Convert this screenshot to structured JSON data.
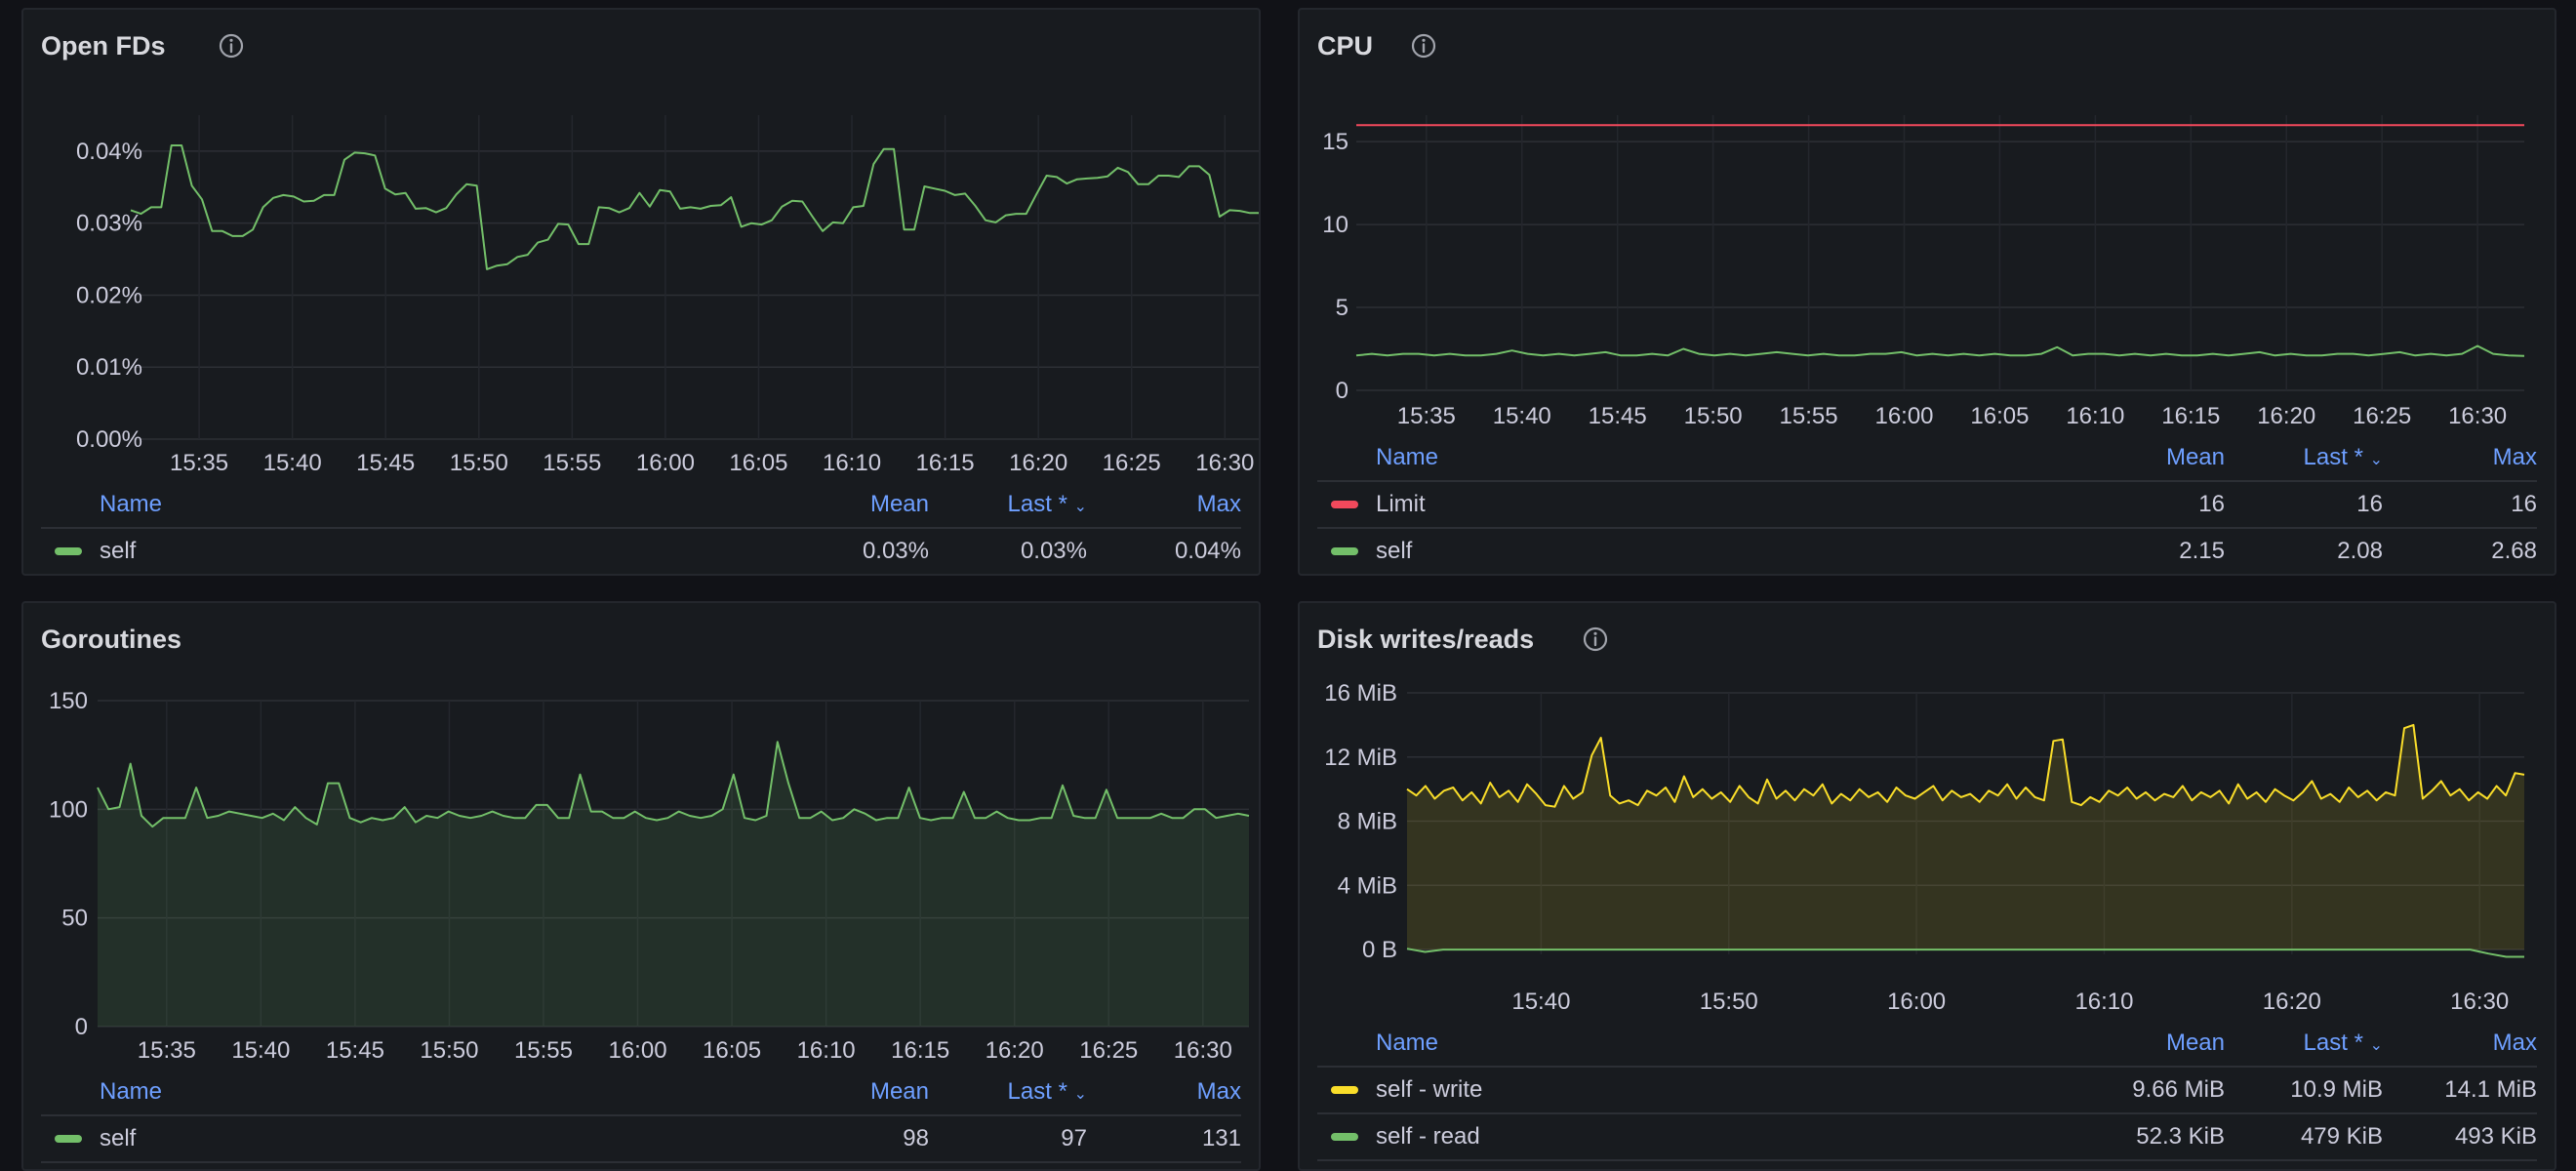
{
  "legend_headers": {
    "name": "Name",
    "mean": "Mean",
    "last": "Last *",
    "max": "Max"
  },
  "icons": {
    "info": "info-circle-icon",
    "sort": "chevron-down-icon"
  },
  "colors": {
    "green": "#73bf69",
    "red": "#f2495c",
    "yellow": "#fade2a",
    "header": "#6e9fff"
  },
  "panels": [
    {
      "id": "open-fds",
      "title": "Open FDs",
      "has_info": true,
      "chart_data": {
        "type": "line",
        "y_ticks": [
          "0.00%",
          "0.01%",
          "0.02%",
          "0.03%",
          "0.04%"
        ],
        "y_tick_values": [
          0,
          0.01,
          0.02,
          0.03,
          0.04
        ],
        "ylim": [
          0,
          0.045
        ],
        "x_ticks": [
          "15:35",
          "15:40",
          "15:45",
          "15:50",
          "15:55",
          "16:00",
          "16:05",
          "16:10",
          "16:15",
          "16:20",
          "16:25",
          "16:30"
        ],
        "series": [
          {
            "name": "self",
            "color": "#73bf69",
            "fill": false,
            "values": [
              0.0318,
              0.0313,
              0.0322,
              0.0322,
              0.0408,
              0.0408,
              0.0352,
              0.0333,
              0.0289,
              0.0289,
              0.0282,
              0.0282,
              0.0291,
              0.0322,
              0.0335,
              0.0339,
              0.0337,
              0.033,
              0.0331,
              0.0339,
              0.0339,
              0.0388,
              0.0398,
              0.0397,
              0.0394,
              0.0348,
              0.034,
              0.0342,
              0.032,
              0.0321,
              0.0315,
              0.0321,
              0.034,
              0.0354,
              0.0352,
              0.0236,
              0.0241,
              0.0243,
              0.0253,
              0.0256,
              0.0273,
              0.0277,
              0.0299,
              0.0298,
              0.0271,
              0.0271,
              0.0322,
              0.0321,
              0.0315,
              0.0321,
              0.0342,
              0.0323,
              0.0346,
              0.0344,
              0.032,
              0.0322,
              0.032,
              0.0324,
              0.0325,
              0.0336,
              0.0295,
              0.03,
              0.0298,
              0.0304,
              0.0323,
              0.0331,
              0.033,
              0.0309,
              0.0289,
              0.0301,
              0.03,
              0.0322,
              0.0324,
              0.0382,
              0.0403,
              0.0403,
              0.0291,
              0.0291,
              0.0351,
              0.0348,
              0.0345,
              0.0339,
              0.0341,
              0.0324,
              0.0304,
              0.0301,
              0.0311,
              0.0313,
              0.0313,
              0.034,
              0.0366,
              0.0364,
              0.0355,
              0.0361,
              0.0362,
              0.0363,
              0.0365,
              0.0377,
              0.0371,
              0.0354,
              0.0354,
              0.0366,
              0.0366,
              0.0364,
              0.0379,
              0.0379,
              0.0367,
              0.0309,
              0.0318,
              0.0317,
              0.0314,
              0.0314,
              0.0314
            ]
          }
        ]
      },
      "legend": [
        {
          "name": "self",
          "color": "#73bf69",
          "mean": "0.03%",
          "last": "0.03%",
          "max": "0.04%"
        }
      ]
    },
    {
      "id": "cpu",
      "title": "CPU",
      "has_info": true,
      "chart_data": {
        "type": "line",
        "y_ticks": [
          "0",
          "5",
          "10",
          "15"
        ],
        "y_tick_values": [
          0,
          5,
          10,
          15
        ],
        "ylim": [
          0,
          16.6
        ],
        "x_ticks": [
          "15:35",
          "15:40",
          "15:45",
          "15:50",
          "15:55",
          "16:00",
          "16:05",
          "16:10",
          "16:15",
          "16:20",
          "16:25",
          "16:30"
        ],
        "series": [
          {
            "name": "Limit",
            "color": "#f2495c",
            "fill": false,
            "values": [
              16,
              16
            ]
          },
          {
            "name": "self",
            "color": "#73bf69",
            "fill": false,
            "values": [
              2.1,
              2.2,
              2.1,
              2.2,
              2.2,
              2.1,
              2.2,
              2.1,
              2.1,
              2.2,
              2.4,
              2.2,
              2.1,
              2.2,
              2.1,
              2.2,
              2.3,
              2.1,
              2.1,
              2.2,
              2.1,
              2.5,
              2.2,
              2.1,
              2.2,
              2.1,
              2.2,
              2.3,
              2.2,
              2.1,
              2.2,
              2.1,
              2.1,
              2.2,
              2.2,
              2.3,
              2.1,
              2.2,
              2.1,
              2.2,
              2.1,
              2.2,
              2.1,
              2.1,
              2.2,
              2.6,
              2.1,
              2.2,
              2.2,
              2.1,
              2.2,
              2.1,
              2.2,
              2.1,
              2.1,
              2.2,
              2.1,
              2.2,
              2.3,
              2.1,
              2.2,
              2.1,
              2.1,
              2.2,
              2.2,
              2.1,
              2.2,
              2.3,
              2.1,
              2.2,
              2.1,
              2.2,
              2.68,
              2.2,
              2.1,
              2.08
            ]
          }
        ]
      },
      "legend": [
        {
          "name": "Limit",
          "color": "#f2495c",
          "mean": "16",
          "last": "16",
          "max": "16"
        },
        {
          "name": "self",
          "color": "#73bf69",
          "mean": "2.15",
          "last": "2.08",
          "max": "2.68"
        }
      ]
    },
    {
      "id": "goroutines",
      "title": "Goroutines",
      "has_info": false,
      "chart_data": {
        "type": "area",
        "y_ticks": [
          "0",
          "50",
          "100",
          "150"
        ],
        "y_tick_values": [
          0,
          50,
          100,
          150
        ],
        "ylim": [
          0,
          150
        ],
        "x_ticks": [
          "15:35",
          "15:40",
          "15:45",
          "15:50",
          "15:55",
          "16:00",
          "16:05",
          "16:10",
          "16:15",
          "16:20",
          "16:25",
          "16:30"
        ],
        "series": [
          {
            "name": "self",
            "color": "#73bf69",
            "fill": true,
            "values": [
              110,
              100,
              101,
              121,
              97,
              92,
              96,
              96,
              96,
              110,
              96,
              97,
              99,
              98,
              97,
              96,
              98,
              95,
              101,
              96,
              93,
              112,
              112,
              96,
              94,
              96,
              95,
              96,
              101,
              94,
              97,
              96,
              99,
              97,
              96,
              97,
              99,
              97,
              96,
              96,
              102,
              102,
              96,
              96,
              116,
              99,
              99,
              96,
              96,
              99,
              96,
              95,
              96,
              99,
              97,
              96,
              97,
              100,
              116,
              96,
              95,
              97,
              131,
              112,
              96,
              96,
              99,
              95,
              96,
              100,
              98,
              95,
              96,
              96,
              110,
              96,
              95,
              96,
              96,
              108,
              96,
              96,
              99,
              96,
              95,
              95,
              96,
              96,
              111,
              97,
              96,
              96,
              109,
              96,
              96,
              96,
              96,
              98,
              96,
              96,
              100,
              100,
              96,
              97,
              98,
              97
            ]
          }
        ]
      },
      "legend": [
        {
          "name": "self",
          "color": "#73bf69",
          "mean": "98",
          "last": "97",
          "max": "131"
        }
      ]
    },
    {
      "id": "disk",
      "title": "Disk writes/reads",
      "has_info": true,
      "chart_data": {
        "type": "area",
        "y_ticks": [
          "0 B",
          "4 MiB",
          "8 MiB",
          "12 MiB",
          "16 MiB"
        ],
        "y_tick_values": [
          0,
          4,
          8,
          12,
          16
        ],
        "ylim": [
          -0.3,
          16
        ],
        "x_ticks": [
          "15:40",
          "15:50",
          "16:00",
          "16:10",
          "16:20",
          "16:30"
        ],
        "series": [
          {
            "name": "self - write",
            "color": "#fade2a",
            "fill": true,
            "values": [
              10.0,
              9.6,
              10.2,
              9.4,
              9.9,
              10.1,
              9.3,
              9.8,
              9.1,
              10.4,
              9.5,
              9.9,
              9.2,
              10.3,
              9.7,
              9.0,
              8.9,
              10.2,
              9.4,
              9.8,
              12.1,
              13.2,
              9.6,
              9.1,
              9.3,
              9.0,
              9.9,
              9.6,
              10.1,
              9.2,
              10.8,
              9.5,
              10.0,
              9.4,
              9.8,
              9.2,
              10.2,
              9.5,
              9.1,
              10.6,
              9.4,
              9.9,
              9.3,
              10.0,
              9.6,
              10.3,
              9.1,
              9.7,
              9.3,
              10.0,
              9.5,
              9.8,
              9.2,
              10.1,
              9.6,
              9.4,
              9.8,
              10.2,
              9.3,
              9.9,
              9.5,
              9.7,
              9.2,
              9.9,
              9.6,
              10.3,
              9.4,
              10.1,
              9.5,
              9.3,
              13.0,
              13.1,
              9.2,
              9.0,
              9.5,
              9.2,
              9.9,
              9.6,
              10.1,
              9.4,
              9.8,
              9.3,
              9.7,
              9.5,
              10.2,
              9.3,
              9.8,
              9.5,
              9.9,
              9.1,
              10.3,
              9.4,
              9.8,
              9.2,
              10.0,
              9.6,
              9.3,
              9.8,
              10.5,
              9.4,
              9.7,
              9.2,
              10.1,
              9.5,
              9.9,
              9.3,
              9.8,
              9.6,
              13.8,
              14.0,
              9.4,
              9.9,
              10.5,
              9.6,
              10.0,
              9.3,
              9.8,
              9.4,
              10.2,
              9.6,
              11.0,
              10.9
            ]
          },
          {
            "name": "self - read",
            "color": "#73bf69",
            "fill": false,
            "values": [
              0.05,
              -0.15,
              0.0,
              0.0,
              0.0,
              0.0,
              0.0,
              0.0,
              0.0,
              0.0,
              0.0,
              0.0,
              0.0,
              0.0,
              0.0,
              0.0,
              0.0,
              0.0,
              0.0,
              0.0,
              0.0,
              0.0,
              0.0,
              0.0,
              0.0,
              0.0,
              0.0,
              0.0,
              0.0,
              0.0,
              0.0,
              0.0,
              0.0,
              0.0,
              0.0,
              0.0,
              0.0,
              0.0,
              0.0,
              0.0,
              0.0,
              0.0,
              0.0,
              0.0,
              0.0,
              0.0,
              0.0,
              0.0,
              0.0,
              0.0,
              0.0,
              0.0,
              0.0,
              0.0,
              0.0,
              0.0,
              0.0,
              0.0,
              0.0,
              0.0,
              -0.25,
              -0.45,
              -0.45
            ]
          }
        ]
      },
      "legend": [
        {
          "name": "self - write",
          "color": "#fade2a",
          "mean": "9.66 MiB",
          "last": "10.9 MiB",
          "max": "14.1 MiB"
        },
        {
          "name": "self - read",
          "color": "#73bf69",
          "mean": "52.3 KiB",
          "last": "479 KiB",
          "max": "493 KiB"
        }
      ]
    }
  ]
}
